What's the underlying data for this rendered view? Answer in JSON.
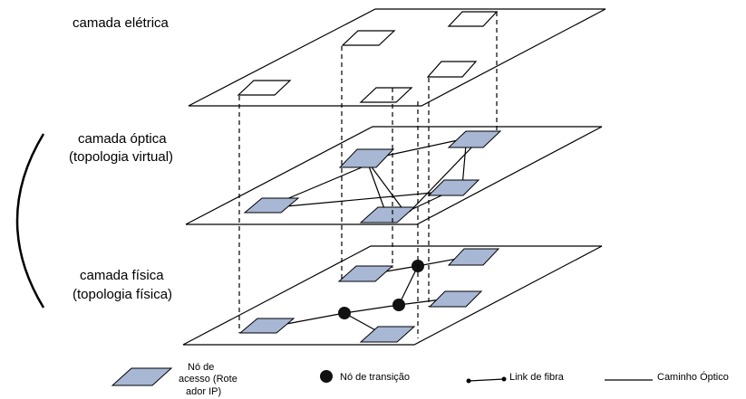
{
  "labels": {
    "electric_layer": "camada elétrica",
    "optical_layer_line1": "camada óptica",
    "optical_layer_line2": "(topologia virtual)",
    "physical_layer_line1": "camada física",
    "physical_layer_line2": "(topologia física)"
  },
  "legend": {
    "access_node_line1": "Nó de",
    "access_node_line2": "acesso (Rote",
    "access_node_line3": "ador IP)",
    "transition_node": "Nó de transição",
    "fiber_link": "Link de fibra",
    "optical_path": "Caminho Óptico"
  },
  "colors": {
    "access_node_fill": "#a7b7d4",
    "transition_node_fill": "#111111",
    "background": "#ffffff"
  }
}
